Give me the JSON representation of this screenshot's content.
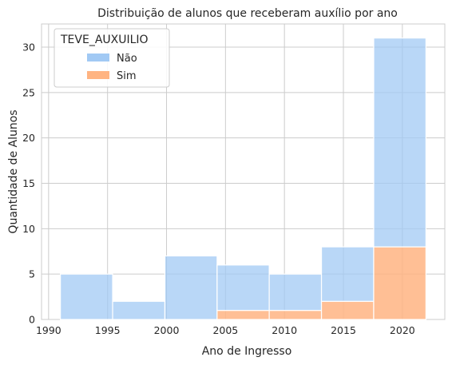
{
  "chart_data": {
    "type": "bar",
    "stacked": true,
    "histogram": true,
    "title": "Distribuição de alunos que receberam auxílio por ano",
    "xlabel": "Ano de Ingresso",
    "ylabel": "Quantidade de Alunos",
    "xlim": [
      1989.4,
      2023.6
    ],
    "ylim": [
      0,
      32.55
    ],
    "x_ticks": [
      "1990",
      "1995",
      "2000",
      "2005",
      "2010",
      "2015",
      "2020"
    ],
    "y_ticks": [
      "0",
      "5",
      "10",
      "15",
      "20",
      "25",
      "30"
    ],
    "bins": [
      {
        "start": 1991.0,
        "end": 1995.43
      },
      {
        "start": 1995.43,
        "end": 1999.86
      },
      {
        "start": 1999.86,
        "end": 2004.29
      },
      {
        "start": 2004.29,
        "end": 2008.71
      },
      {
        "start": 2008.71,
        "end": 2013.14
      },
      {
        "start": 2013.14,
        "end": 2017.57
      },
      {
        "start": 2017.57,
        "end": 2022.0
      }
    ],
    "series": [
      {
        "name": "Não",
        "color": "#a1c9f4",
        "values": [
          5,
          2,
          7,
          5,
          4,
          6,
          23
        ]
      },
      {
        "name": "Sim",
        "color": "#ffb482",
        "values": [
          0,
          0,
          0,
          1,
          1,
          2,
          8
        ]
      }
    ],
    "legend": {
      "title": "TEVE_AUXUILIO",
      "placement": "top-left"
    },
    "grid": true
  }
}
